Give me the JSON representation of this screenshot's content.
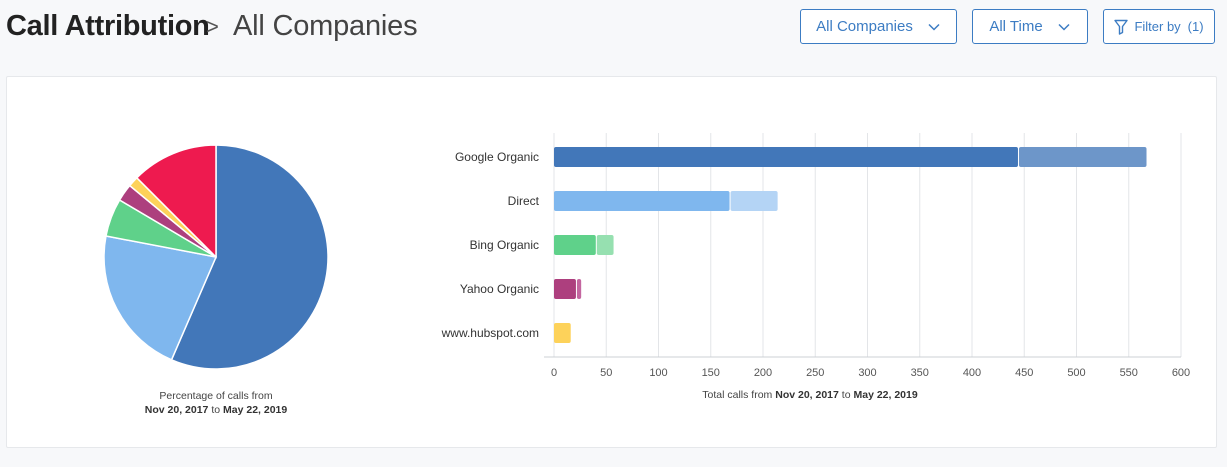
{
  "header": {
    "title": "Call Attribution",
    "separator": ">",
    "subtitle": "All Companies",
    "company_filter": "All Companies",
    "time_filter": "All Time",
    "filter_label": "Filter by",
    "filter_count": "(1)"
  },
  "colors": {
    "accent": "#3c7cc3",
    "google_organic": "#4277b9",
    "direct": "#7fb7ee",
    "bing_organic": "#5fd18a",
    "yahoo_organic": "#ad3f7e",
    "hubspot": "#fdd25a",
    "other": "#ee1a4f"
  },
  "pie_caption": {
    "line1": "Percentage of calls from",
    "date_from": "Nov 20, 2017",
    "to": "to",
    "date_to": "May 22, 2019"
  },
  "bar_caption": {
    "prefix": "Total calls from",
    "date_from": "Nov 20, 2017",
    "to": "to",
    "date_to": "May 22, 2019"
  },
  "chart_data": [
    {
      "type": "pie",
      "title": "",
      "slices": [
        {
          "label": "Google Organic",
          "value": 56.5,
          "color": "#4277b9"
        },
        {
          "label": "Direct",
          "value": 21.5,
          "color": "#7fb7ee"
        },
        {
          "label": "Bing Organic",
          "value": 5.5,
          "color": "#5fd18a"
        },
        {
          "label": "Yahoo Organic",
          "value": 2.5,
          "color": "#ad3f7e"
        },
        {
          "label": "www.hubspot.com",
          "value": 1.5,
          "color": "#fdd25a"
        },
        {
          "label": "",
          "value": 12.5,
          "color": "#ee1a4f"
        }
      ]
    },
    {
      "type": "bar",
      "orientation": "horizontal",
      "stacked": true,
      "categories": [
        "Google Organic",
        "Direct",
        "Bing Organic",
        "Yahoo Organic",
        "www.hubspot.com"
      ],
      "series": [
        {
          "values": [
            444,
            168,
            40,
            21,
            16
          ],
          "colors": [
            "#4277b9",
            "#7fb7ee",
            "#5fd18a",
            "#ad3f7e",
            "#fdd25a"
          ]
        },
        {
          "values": [
            123,
            46,
            17,
            5,
            0
          ],
          "colors": [
            "#6d96c9",
            "#b4d4f5",
            "#96e0b0",
            "#c466a0",
            "#fee28f"
          ]
        }
      ],
      "xlim": [
        0,
        600
      ],
      "x_ticks": [
        0,
        50,
        100,
        150,
        200,
        250,
        300,
        350,
        400,
        450,
        500,
        550,
        600
      ],
      "xlabel": "Total calls from Nov 20, 2017 to May 22, 2019",
      "grid": true
    }
  ]
}
